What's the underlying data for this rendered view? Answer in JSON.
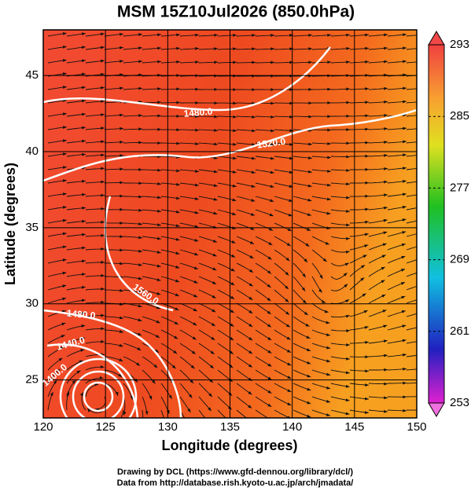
{
  "chart_data": {
    "type": "field",
    "title": "MSM 15Z10Jul2026 (850.0hPa)",
    "xlabel": "Longitude (degrees)",
    "ylabel": "Latitude  (degrees)",
    "xlim": [
      120,
      150
    ],
    "xticks": [
      120,
      125,
      130,
      135,
      140,
      145,
      150
    ],
    "ylim": [
      22.5,
      48
    ],
    "yticks": [
      25,
      30,
      35,
      40,
      45
    ],
    "clim": [
      253,
      293
    ],
    "cticks": [
      253,
      261,
      269,
      277,
      285,
      293
    ],
    "annotations": [
      "1480.0",
      "1520.0",
      "1560.0",
      "1480.0",
      "1440.0",
      "1400.0"
    ],
    "footer": [
      "Drawing by DCL (https://www.gfd-dennou.org/library/dcl/)",
      "Data from http://database.rish.kyoto-u.ac.jp/arch/jmadata/"
    ]
  }
}
